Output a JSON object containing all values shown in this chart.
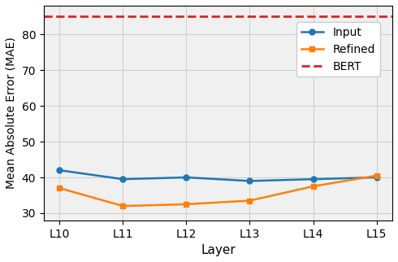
{
  "x_labels": [
    "L10",
    "L11",
    "L12",
    "L13",
    "L14",
    "L15"
  ],
  "input_values": [
    42.0,
    39.5,
    40.0,
    39.0,
    39.5,
    40.0
  ],
  "refined_values": [
    37.0,
    32.0,
    32.5,
    33.5,
    37.5,
    40.5
  ],
  "bert_value": 85.0,
  "input_color": "#1f77b4",
  "refined_color": "#ff7f0e",
  "bert_color": "#d62728",
  "xlabel": "Layer",
  "ylabel": "Mean Absolute Error (MAE)",
  "ylim": [
    28,
    88
  ],
  "yticks": [
    30,
    40,
    50,
    60,
    70,
    80
  ],
  "legend_input": "Input",
  "legend_refined": "Refined",
  "legend_bert": "BERT",
  "input_marker": "o",
  "refined_marker": "s",
  "marker_size": 5,
  "linewidth": 1.8
}
